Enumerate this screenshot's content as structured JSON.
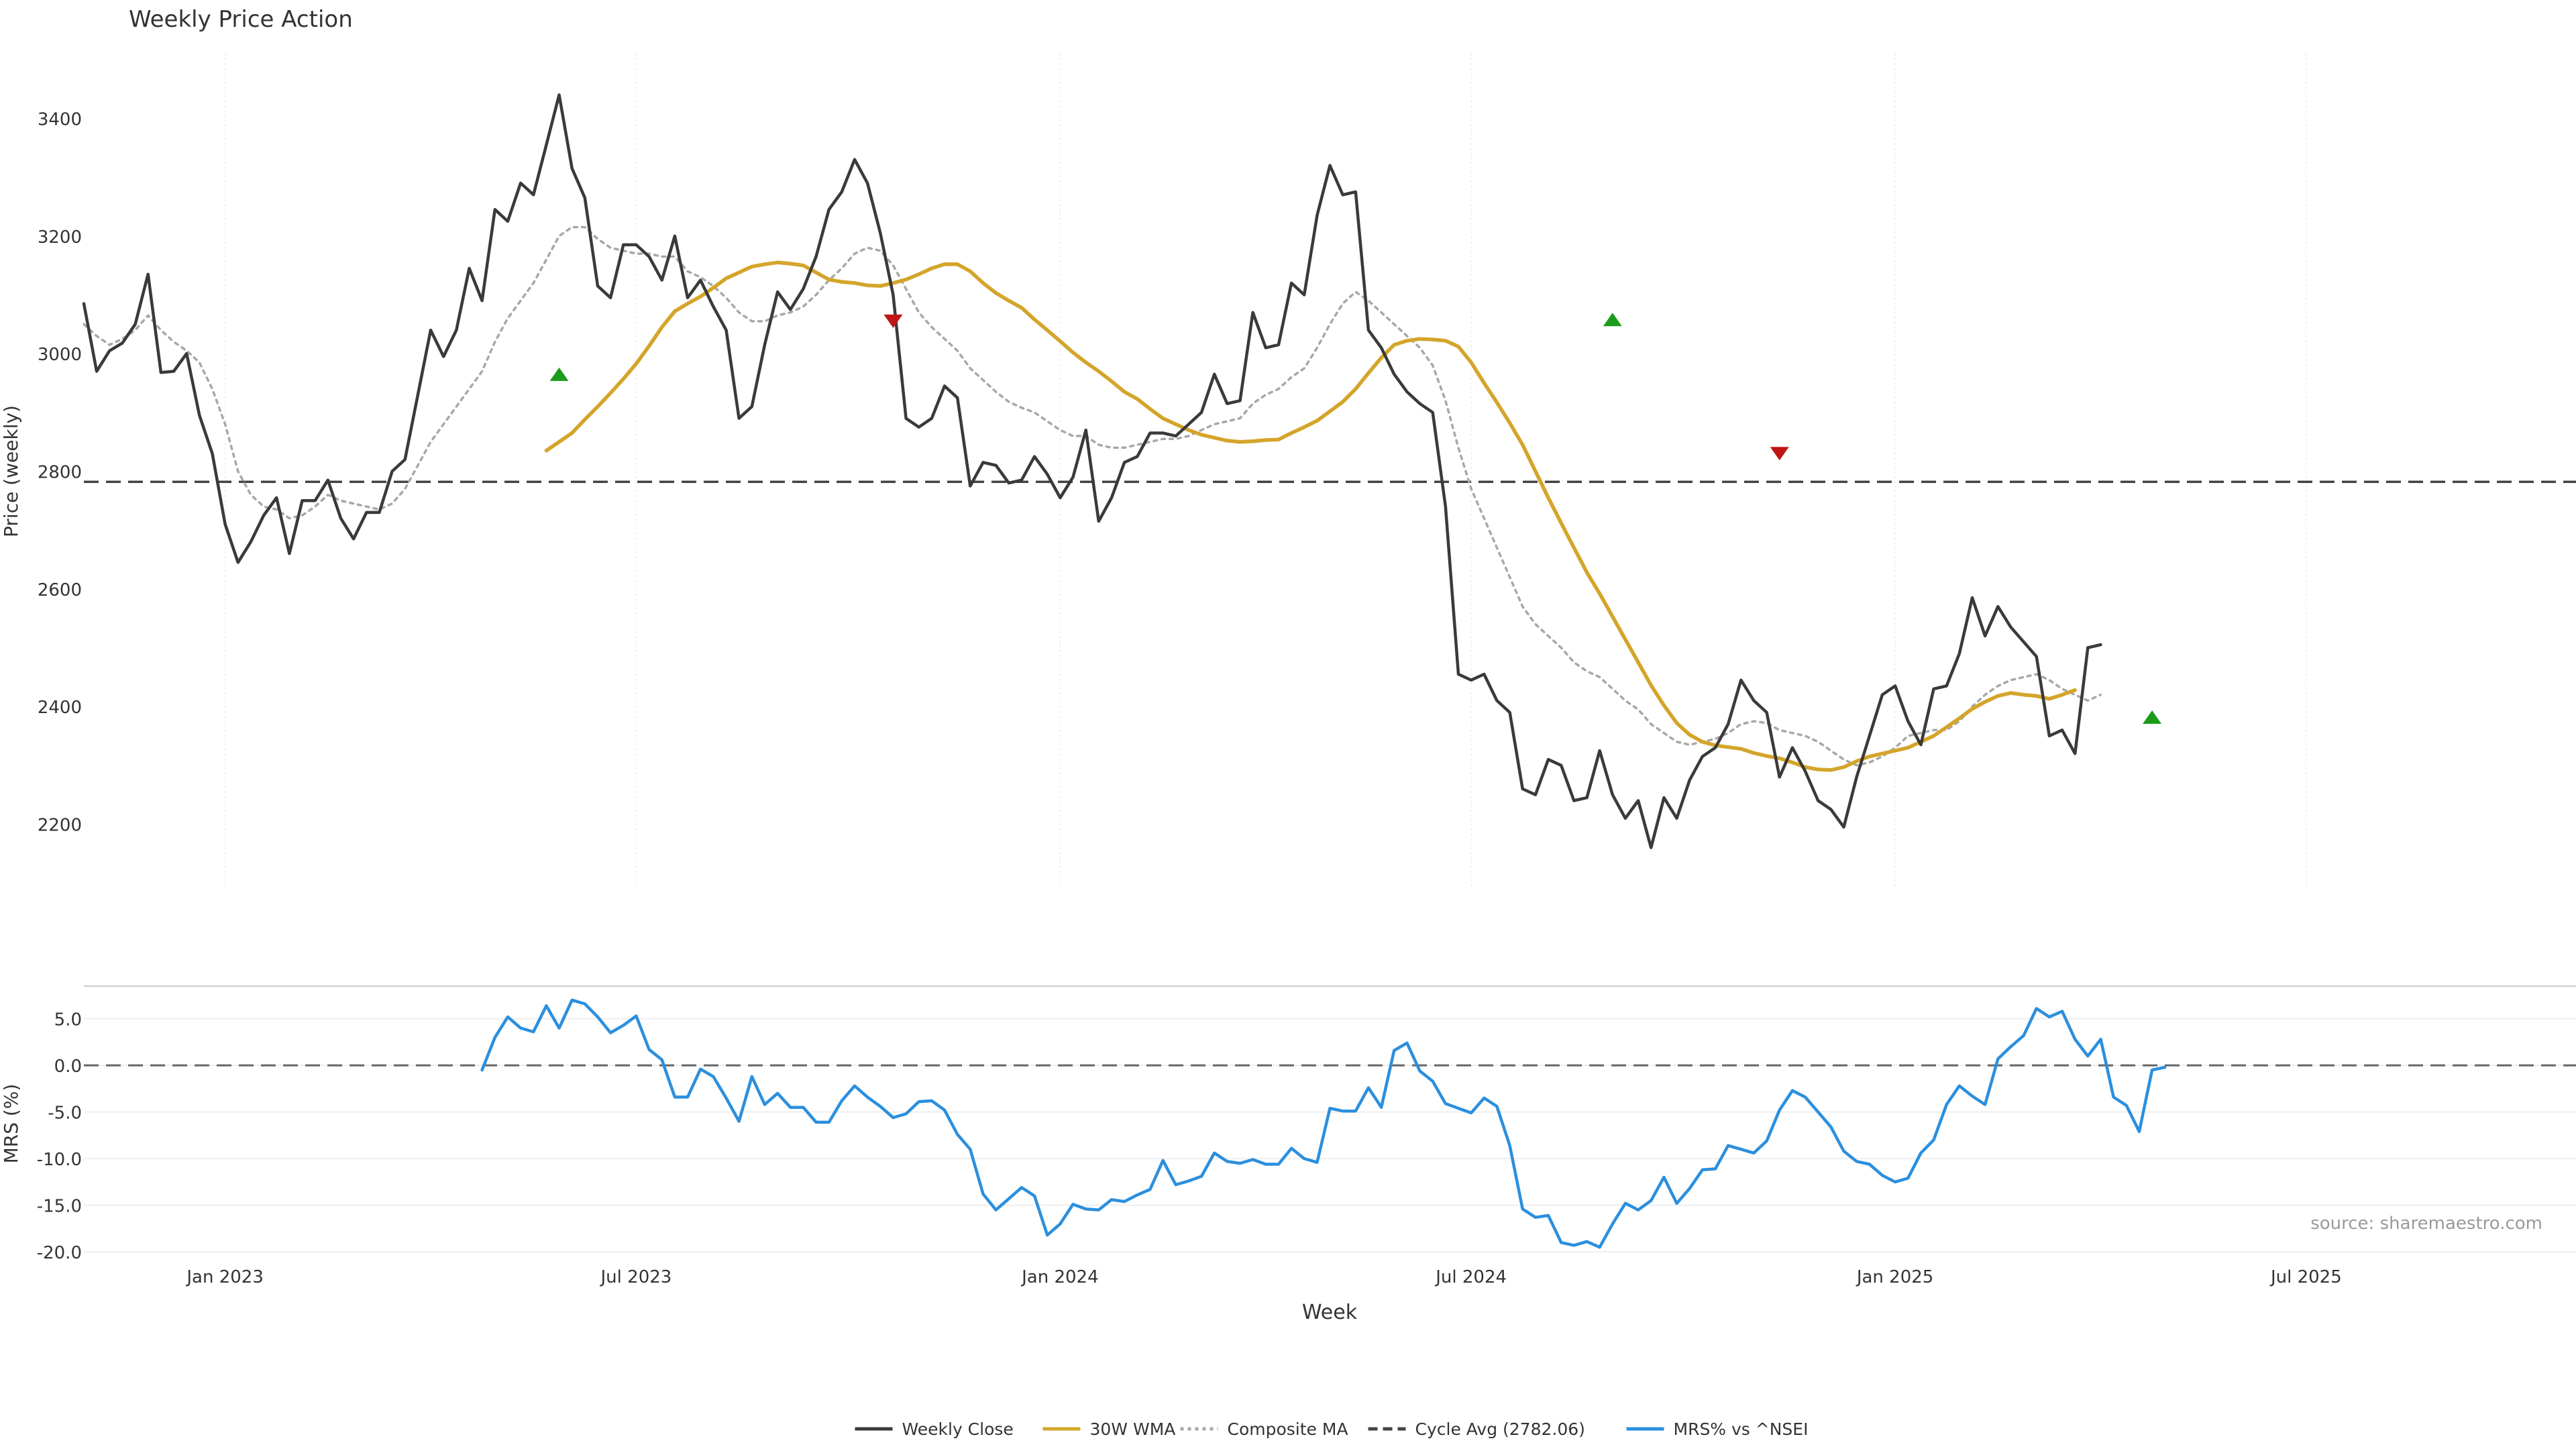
{
  "chart_data": [
    {
      "type": "line",
      "title": "Weekly Price Action",
      "ylabel": "Price (weekly)",
      "xlabel": "",
      "ylim": [
        2090,
        3510
      ],
      "xlim": [
        0,
        194
      ],
      "yticks": [
        2200,
        2400,
        2600,
        2800,
        3000,
        3200,
        3400
      ],
      "x_ticks": [
        {
          "label": "Jan 2023",
          "x": 11
        },
        {
          "label": "Jul 2023",
          "x": 43
        },
        {
          "label": "Jan 2024",
          "x": 76
        },
        {
          "label": "Jul 2024",
          "x": 108
        },
        {
          "label": "Jan 2025",
          "x": 141
        },
        {
          "label": "Jul 2025",
          "x": 173
        }
      ],
      "grid": "vertical",
      "series": [
        {
          "name": "Weekly Close",
          "color": "#3a3a3a",
          "style": "solid",
          "start": 0,
          "values": [
            3085,
            2970,
            3005,
            3018,
            3050,
            3135,
            2968,
            2970,
            3000,
            2895,
            2830,
            2710,
            2645,
            2680,
            2725,
            2755,
            2660,
            2750,
            2750,
            2785,
            2720,
            2685,
            2730,
            2730,
            2800,
            2820,
            2930,
            3040,
            2995,
            3040,
            3145,
            3090,
            3245,
            3225,
            3290,
            3270,
            3355,
            3440,
            3315,
            3265,
            3115,
            3095,
            3185,
            3185,
            3165,
            3125,
            3200,
            3095,
            3125,
            3080,
            3040,
            2890,
            2910,
            3015,
            3105,
            3075,
            3110,
            3165,
            3245,
            3275,
            3330,
            3290,
            3205,
            3100,
            2890,
            2875,
            2890,
            2945,
            2925,
            2775,
            2815,
            2810,
            2780,
            2785,
            2825,
            2795,
            2755,
            2790,
            2870,
            2715,
            2755,
            2815,
            2825,
            2865,
            2865,
            2860,
            2880,
            2900,
            2965,
            2915,
            2920,
            3070,
            3010,
            3015,
            3120,
            3100,
            3235,
            3320,
            3270,
            3275,
            3040,
            3010,
            2965,
            2935,
            2915,
            2900,
            2740,
            2455,
            2445,
            2455,
            2410,
            2390,
            2260,
            2250,
            2310,
            2300,
            2240,
            2245,
            2325,
            2250,
            2210,
            2240,
            2160,
            2245,
            2210,
            2275,
            2315,
            2330,
            2370,
            2445,
            2410,
            2390,
            2280,
            2330,
            2290,
            2240,
            2225,
            2195,
            2280,
            2350,
            2420,
            2435,
            2375,
            2335,
            2430,
            2435,
            2490,
            2585,
            2520,
            2570,
            2535,
            2510,
            2485,
            2350,
            2360,
            2320,
            2500,
            2505
          ]
        },
        {
          "name": "30W WMA",
          "color": "#d4a52a",
          "style": "solid",
          "start": 36,
          "values": [
            2835,
            2850,
            2865,
            2888,
            2910,
            2933,
            2957,
            2983,
            3013,
            3045,
            3072,
            3085,
            3097,
            3112,
            3128,
            3138,
            3148,
            3152,
            3155,
            3153,
            3150,
            3138,
            3126,
            3122,
            3120,
            3116,
            3115,
            3120,
            3126,
            3135,
            3145,
            3152,
            3152,
            3140,
            3120,
            3103,
            3090,
            3078,
            3058,
            3040,
            3021,
            3002,
            2985,
            2970,
            2953,
            2935,
            2923,
            2906,
            2890,
            2880,
            2870,
            2862,
            2857,
            2852,
            2850,
            2851,
            2853,
            2854,
            2865,
            2875,
            2886,
            2902,
            2918,
            2940,
            2967,
            2993,
            3015,
            3022,
            3025,
            3024,
            3022,
            3012,
            2985,
            2950,
            2917,
            2882,
            2845,
            2800,
            2755,
            2712,
            2670,
            2628,
            2592,
            2553,
            2514,
            2475,
            2436,
            2402,
            2372,
            2352,
            2340,
            2334,
            2331,
            2328,
            2321,
            2316,
            2312,
            2305,
            2297,
            2293,
            2292,
            2297,
            2307,
            2315,
            2320,
            2325,
            2330,
            2340,
            2350,
            2365,
            2380,
            2396,
            2408,
            2418,
            2423,
            2420,
            2418,
            2413,
            2420,
            2428
          ]
        },
        {
          "name": "Composite MA",
          "color": "#a8a8a8",
          "style": "dotted",
          "start": 0,
          "values": [
            3050,
            3030,
            3015,
            3025,
            3040,
            3065,
            3040,
            3020,
            3005,
            2985,
            2940,
            2880,
            2800,
            2760,
            2740,
            2735,
            2720,
            2725,
            2740,
            2760,
            2750,
            2745,
            2740,
            2735,
            2745,
            2770,
            2810,
            2850,
            2880,
            2910,
            2940,
            2970,
            3020,
            3060,
            3090,
            3120,
            3160,
            3200,
            3215,
            3215,
            3195,
            3180,
            3175,
            3170,
            3170,
            3165,
            3165,
            3140,
            3130,
            3115,
            3095,
            3070,
            3055,
            3055,
            3065,
            3070,
            3080,
            3100,
            3125,
            3145,
            3170,
            3180,
            3175,
            3150,
            3110,
            3070,
            3045,
            3025,
            3005,
            2975,
            2955,
            2935,
            2918,
            2908,
            2900,
            2885,
            2870,
            2860,
            2860,
            2845,
            2840,
            2840,
            2845,
            2850,
            2855,
            2855,
            2860,
            2870,
            2880,
            2885,
            2890,
            2915,
            2930,
            2940,
            2960,
            2975,
            3010,
            3050,
            3085,
            3105,
            3090,
            3070,
            3050,
            3030,
            3010,
            2980,
            2920,
            2840,
            2770,
            2720,
            2670,
            2620,
            2570,
            2540,
            2520,
            2500,
            2475,
            2460,
            2450,
            2430,
            2410,
            2395,
            2370,
            2355,
            2340,
            2335,
            2340,
            2345,
            2355,
            2370,
            2375,
            2372,
            2360,
            2355,
            2350,
            2340,
            2325,
            2310,
            2300,
            2305,
            2315,
            2330,
            2350,
            2355,
            2360,
            2360,
            2375,
            2400,
            2420,
            2435,
            2445,
            2450,
            2455,
            2445,
            2430,
            2420,
            2410,
            2420
          ]
        },
        {
          "name": "Cycle Avg (2782.06)",
          "color": "#444444",
          "style": "dashed",
          "constant": 2782.06
        }
      ],
      "markers": [
        {
          "type": "buy",
          "x": 37,
          "y": 2965,
          "color": "#1a9c1a"
        },
        {
          "type": "sell",
          "x": 63,
          "y": 3055,
          "color": "#c01515"
        },
        {
          "type": "buy",
          "x": 119,
          "y": 3058,
          "color": "#1a9c1a"
        },
        {
          "type": "sell",
          "x": 132,
          "y": 2830,
          "color": "#c01515"
        },
        {
          "type": "buy",
          "x": 161,
          "y": 2382,
          "color": "#1a9c1a"
        }
      ]
    },
    {
      "type": "line",
      "title": "",
      "ylabel": "MRS (%)",
      "xlabel": "Week",
      "ylim": [
        -21,
        8.5
      ],
      "xlim": [
        0,
        194
      ],
      "yticks": [
        "5.0",
        "0.0",
        "-5.0",
        "-10.0",
        "-15.0",
        "-20.0"
      ],
      "grid": "horizontal",
      "annotation": "source: sharemaestro.com",
      "series": [
        {
          "name": "MRS% vs ^NSEI",
          "color": "#2b8fde",
          "style": "solid",
          "start": 31,
          "values": [
            -0.5,
            3.0,
            5.2,
            4.0,
            3.6,
            6.4,
            4.0,
            7.0,
            6.6,
            5.2,
            3.5,
            4.3,
            5.3,
            1.7,
            0.6,
            -3.4,
            -3.4,
            -0.4,
            -1.2,
            -3.5,
            -6.0,
            -1.2,
            -4.2,
            -3.0,
            -4.5,
            -4.5,
            -6.1,
            -6.1,
            -3.8,
            -2.2,
            -3.4,
            -4.4,
            -5.6,
            -5.2,
            -3.9,
            -3.8,
            -4.8,
            -7.4,
            -9.0,
            -13.8,
            -15.5,
            -14.3,
            -13.1,
            -14.0,
            -18.2,
            -17.0,
            -14.9,
            -15.4,
            -15.5,
            -14.4,
            -14.6,
            -13.9,
            -13.3,
            -10.2,
            -12.8,
            -12.4,
            -11.9,
            -9.4,
            -10.3,
            -10.5,
            -10.1,
            -10.6,
            -10.6,
            -8.9,
            -10.0,
            -10.4,
            -4.6,
            -4.9,
            -4.9,
            -2.4,
            -4.5,
            1.6,
            2.4,
            -0.6,
            -1.7,
            -4.1,
            -4.6,
            -5.1,
            -3.5,
            -4.4,
            -8.6,
            -15.4,
            -16.3,
            -16.1,
            -19.0,
            -19.3,
            -18.9,
            -19.5,
            -17.0,
            -14.8,
            -15.5,
            -14.5,
            -12.0,
            -14.8,
            -13.2,
            -11.2,
            -11.1,
            -8.6,
            -9.0,
            -9.4,
            -8.1,
            -4.8,
            -2.7,
            -3.4,
            -5.0,
            -6.6,
            -9.2,
            -10.3,
            -10.6,
            -11.8,
            -12.5,
            -12.1,
            -9.4,
            -8.0,
            -4.2,
            -2.2,
            -3.3,
            -4.2,
            0.7,
            2.0,
            3.2,
            6.1,
            5.2,
            5.8,
            2.8,
            1.0,
            2.8,
            -3.4,
            -4.3,
            -7.1,
            -0.5,
            -0.2
          ]
        },
        {
          "name": "Zero",
          "color": "#666666",
          "style": "dashed",
          "constant": 0
        }
      ]
    }
  ],
  "legend": {
    "position": "bottom-center",
    "items": [
      {
        "label": "Weekly Close",
        "color": "#3a3a3a",
        "style": "solid"
      },
      {
        "label": "30W WMA",
        "color": "#d4a52a",
        "style": "solid"
      },
      {
        "label": "Composite MA",
        "color": "#a8a8a8",
        "style": "dotted"
      },
      {
        "label": "Cycle Avg (2782.06)",
        "color": "#444444",
        "style": "dashed"
      },
      {
        "label": "MRS% vs ^NSEI",
        "color": "#2b8fde",
        "style": "solid"
      }
    ]
  }
}
